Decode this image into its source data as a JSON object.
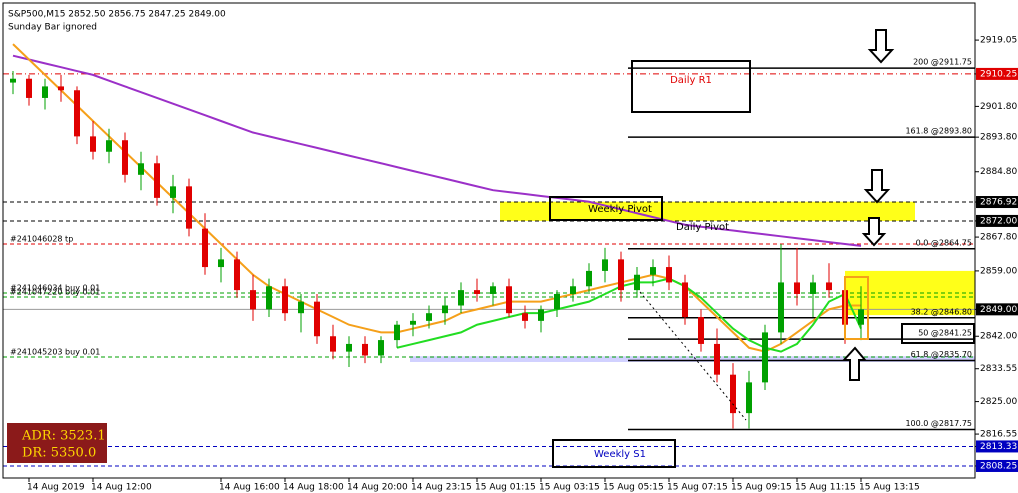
{
  "chart_data": {
    "type": "candlestick",
    "title": "S&P500,M15  2852.50 2856.75 2847.25 2849.00",
    "subtitle": "Sunday Bar ignored",
    "ylim": [
      2804.6,
      2927.4
    ],
    "yticks": [
      {
        "value": 2919.05,
        "label": "2919.05"
      },
      {
        "value": 2910.25,
        "label": "2910.25",
        "color": "#e00000"
      },
      {
        "value": 2901.8,
        "label": "2901.80"
      },
      {
        "value": 2893.8,
        "label": "2893.80"
      },
      {
        "value": 2884.8,
        "label": "2884.80"
      },
      {
        "value": 2876.92,
        "label": "2876.92",
        "color": "#000000"
      },
      {
        "value": 2872.0,
        "label": "2872.00",
        "color": "#000000"
      },
      {
        "value": 2867.8,
        "label": "2867.80"
      },
      {
        "value": 2859.0,
        "label": "2859.00"
      },
      {
        "value": 2849.0,
        "label": "2849.00",
        "color": "#000000"
      },
      {
        "value": 2842.0,
        "label": "2842.00"
      },
      {
        "value": 2833.55,
        "label": "2833.55"
      },
      {
        "value": 2825.0,
        "label": "2825.00"
      },
      {
        "value": 2816.55,
        "label": "2816.55"
      },
      {
        "value": 2813.33,
        "label": "2813.33",
        "color": "#0000c0"
      },
      {
        "value": 2808.25,
        "label": "2808.25",
        "color": "#0000c0"
      }
    ],
    "categories": [
      null,
      "14 Aug 2019",
      null,
      null,
      null,
      "14 Aug 12:00",
      null,
      null,
      null,
      null,
      null,
      null,
      null,
      "14 Aug 16:00",
      null,
      null,
      null,
      "14 Aug 18:00",
      null,
      null,
      null,
      "14 Aug 20:00",
      null,
      null,
      null,
      "14 Aug 23:15",
      null,
      null,
      null,
      "15 Aug 01:15",
      null,
      null,
      null,
      "15 Aug 03:15",
      null,
      null,
      null,
      "15 Aug 05:15",
      null,
      null,
      null,
      "15 Aug 07:15",
      null,
      null,
      null,
      "15 Aug 09:15",
      null,
      null,
      null,
      "15 Aug 11:15",
      null,
      null,
      null,
      "15 Aug 13:15"
    ],
    "open": [
      2908,
      2909,
      2904,
      2907,
      2906,
      2894,
      2890,
      2893,
      2884,
      2887,
      2878,
      2881,
      2870,
      2860,
      2862,
      2854,
      2849,
      2855,
      2848,
      2851,
      2842,
      2838,
      2840,
      2837,
      2841,
      2845,
      2846,
      2848,
      2850,
      2854,
      2853,
      2855,
      2848,
      2846,
      2849,
      2853,
      2855,
      2859,
      2862,
      2854,
      2858,
      2860,
      2856,
      2847,
      2840,
      2832,
      2822,
      2830,
      2843,
      2856,
      2853,
      2856,
      2854,
      2845
    ],
    "high": [
      2911,
      2910,
      2909,
      2910,
      2907,
      2898,
      2896,
      2895,
      2890,
      2889,
      2884,
      2883,
      2874,
      2865,
      2864,
      2858,
      2857,
      2857,
      2853,
      2853,
      2845,
      2842,
      2842,
      2842,
      2846,
      2848,
      2850,
      2852,
      2856,
      2857,
      2856,
      2857,
      2850,
      2850,
      2854,
      2857,
      2861,
      2865,
      2864,
      2860,
      2862,
      2863,
      2858,
      2849,
      2844,
      2835,
      2833,
      2845,
      2866,
      2865,
      2858,
      2861,
      2857,
      2855
    ],
    "low": [
      2905,
      2902,
      2901,
      2903,
      2892,
      2888,
      2887,
      2882,
      2880,
      2876,
      2874,
      2868,
      2858,
      2856,
      2852,
      2846,
      2847,
      2846,
      2843,
      2840,
      2836,
      2834,
      2835,
      2835,
      2839,
      2842,
      2844,
      2845,
      2848,
      2851,
      2850,
      2847,
      2844,
      2843,
      2847,
      2851,
      2853,
      2856,
      2851,
      2852,
      2855,
      2854,
      2845,
      2838,
      2830,
      2818,
      2818,
      2828,
      2840,
      2850,
      2847,
      2852,
      2840,
      2841
    ],
    "close": [
      2909,
      2904,
      2907,
      2906,
      2894,
      2890,
      2893,
      2884,
      2887,
      2878,
      2881,
      2870,
      2860,
      2862,
      2854,
      2849,
      2855,
      2848,
      2851,
      2842,
      2838,
      2840,
      2837,
      2841,
      2845,
      2846,
      2848,
      2850,
      2854,
      2853,
      2855,
      2848,
      2846,
      2849,
      2853,
      2855,
      2859,
      2862,
      2854,
      2858,
      2860,
      2856,
      2847,
      2840,
      2832,
      2822,
      2830,
      2843,
      2856,
      2853,
      2856,
      2854,
      2845,
      2849
    ],
    "up_color": "#00a000",
    "down_color": "#e00000",
    "series": [
      {
        "color": "#9b30c8",
        "values": [
          2915,
          2914,
          2913,
          2912,
          2911,
          2910,
          2908.5,
          2907,
          2905.5,
          2904,
          2902.5,
          2901,
          2899.5,
          2898,
          2896.5,
          2895,
          2894,
          2893,
          2892,
          2891,
          2890,
          2889,
          2888,
          2887,
          2886,
          2885,
          2884,
          2883,
          2882,
          2881,
          2880,
          2879.5,
          2879,
          2878.5,
          2878,
          2877.5,
          2877,
          2876,
          2875,
          2874,
          2873,
          2872,
          2871,
          2870.5,
          2870,
          2869.5,
          2869,
          2868.5,
          2868,
          2867.5,
          2867,
          2866.5,
          2866,
          2865.5
        ]
      },
      {
        "color": "#f5a01a",
        "values": [
          2918,
          2914,
          2910,
          2906,
          2902,
          2898,
          2894,
          2890,
          2886,
          2882,
          2878,
          2874,
          2870,
          2866,
          2862,
          2858,
          2855,
          2853,
          2851,
          2849,
          2847,
          2845,
          2844,
          2843,
          2843,
          2844,
          2845,
          2846,
          2848,
          2849,
          2850,
          2851,
          2851,
          2851,
          2852,
          2853,
          2854,
          2855,
          2856,
          2857,
          2858,
          2857,
          2855,
          2851,
          2847,
          2843,
          2839,
          2838,
          2840,
          2843,
          2846,
          2849,
          2850,
          2850
        ]
      },
      {
        "color": "#22dd22",
        "values": [
          null,
          null,
          null,
          null,
          null,
          null,
          null,
          null,
          null,
          null,
          null,
          null,
          null,
          null,
          null,
          null,
          null,
          null,
          null,
          null,
          null,
          null,
          null,
          null,
          2839,
          2840,
          2841,
          2842,
          2843,
          2845,
          2846,
          2847,
          2848,
          2848,
          2849,
          2850,
          2851,
          2853,
          2855,
          2856,
          2856,
          2857,
          2855,
          2852,
          2848,
          2844,
          2841,
          2839,
          2838,
          2840,
          2845,
          2851,
          2853,
          2844
        ]
      }
    ],
    "levels": [
      {
        "value": 2910.25,
        "color": "#e00000",
        "style": "dashdot"
      },
      {
        "value": 2876.92,
        "color": "#000000",
        "style": "dash"
      },
      {
        "value": 2872.0,
        "color": "#000000",
        "style": "dash"
      },
      {
        "value": 2866,
        "color": "#e00000",
        "style": "dash",
        "label": "#241046028 tp"
      },
      {
        "value": 2853.25,
        "color": "#00a000",
        "style": "dash",
        "label": "#241046034 buy 0.01"
      },
      {
        "value": 2852.2,
        "color": "#00a000",
        "style": "dash",
        "label": "#241047220 buy 0.01"
      },
      {
        "value": 2849.0,
        "color": "#999999",
        "style": "solid"
      },
      {
        "value": 2836.6,
        "color": "#00a000",
        "style": "dash",
        "label": "#241045203 buy 0.01"
      },
      {
        "value": 2813.33,
        "color": "#0000c0",
        "style": "dash"
      },
      {
        "value": 2808.25,
        "color": "#0000c0",
        "style": "dash"
      }
    ],
    "zones": [
      {
        "from": 2877,
        "to": 2872,
        "color": "#ffff00"
      },
      {
        "from": 2859,
        "to": 2847.5,
        "color": "#ffff00"
      },
      {
        "from": 2836.8,
        "to": 2835.3,
        "color": "#ccccff"
      }
    ],
    "fib": [
      {
        "value": 2911.75,
        "label": "200 @2911.75"
      },
      {
        "value": 2893.8,
        "label": "161.8 @2893.80"
      },
      {
        "value": 2864.75,
        "label": "0.0 @2864.75"
      },
      {
        "value": 2846.8,
        "label": "38.2 @2846.80"
      },
      {
        "value": 2841.25,
        "label": "50 @2841.25"
      },
      {
        "value": 2835.7,
        "label": "61.8 @2835.70"
      },
      {
        "value": 2817.75,
        "label": "100.0 @2817.75"
      }
    ],
    "annotations": {
      "daily_r1": "Daily R1",
      "weekly_pivot": "Weekly Pivot",
      "daily_pivot": "Daily Pivot",
      "weekly_s1": "Weekly S1",
      "adr": "ADR: 3523.1",
      "dr": "DR: 5350.0"
    }
  }
}
